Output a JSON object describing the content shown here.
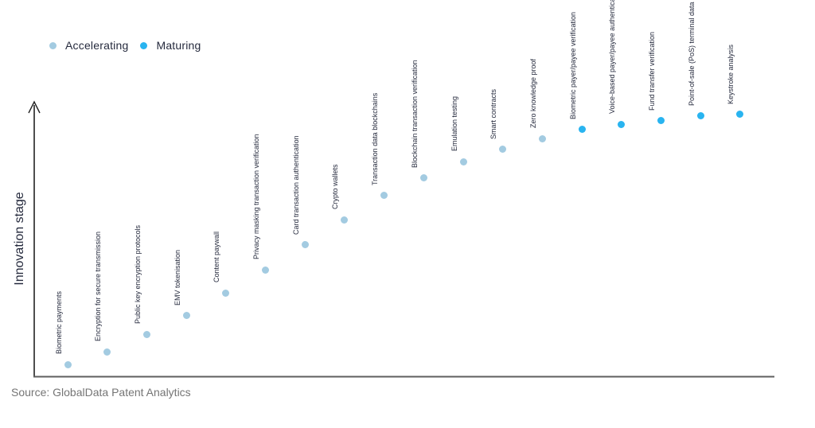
{
  "legend": {
    "items": [
      {
        "label": "Accelerating",
        "color": "#a3cbe1"
      },
      {
        "label": "Maturing",
        "color": "#29b4f0"
      }
    ]
  },
  "source": "Source: GlobalData Patent Analytics",
  "chart_data": {
    "type": "scatter",
    "title": "",
    "xlabel": "",
    "ylabel": "Innovation stage",
    "grid": false,
    "legend_position": "top-left",
    "y_range": [
      0,
      1
    ],
    "points": [
      {
        "label": "Biometric payments",
        "group": "Accelerating",
        "stage": 0.046
      },
      {
        "label": "Encryption for secure transmission",
        "group": "Accelerating",
        "stage": 0.092
      },
      {
        "label": "Public key encryption protocols",
        "group": "Accelerating",
        "stage": 0.156
      },
      {
        "label": "EMV tokenisation",
        "group": "Accelerating",
        "stage": 0.223
      },
      {
        "label": "Content paywall",
        "group": "Accelerating",
        "stage": 0.306
      },
      {
        "label": "Privacy masking transaction verification",
        "group": "Accelerating",
        "stage": 0.39
      },
      {
        "label": "Card transaction authentication",
        "group": "Accelerating",
        "stage": 0.48
      },
      {
        "label": "Crypto wallets",
        "group": "Accelerating",
        "stage": 0.572
      },
      {
        "label": "Transaction data blockchains",
        "group": "Accelerating",
        "stage": 0.659
      },
      {
        "label": "Blockchain transaction verification",
        "group": "Accelerating",
        "stage": 0.723
      },
      {
        "label": "Emulation testing",
        "group": "Accelerating",
        "stage": 0.783
      },
      {
        "label": "Smart contracts",
        "group": "Accelerating",
        "stage": 0.827
      },
      {
        "label": "Zero knowledge proof",
        "group": "Accelerating",
        "stage": 0.867
      },
      {
        "label": "Biometric payer/payee verification",
        "group": "Maturing",
        "stage": 0.899
      },
      {
        "label": "Voice-based payer/payee authentication",
        "group": "Maturing",
        "stage": 0.919
      },
      {
        "label": "Fund transfer verification",
        "group": "Maturing",
        "stage": 0.931
      },
      {
        "label": "Point-of-sale (PoS) terminal data security",
        "group": "Maturing",
        "stage": 0.948
      },
      {
        "label": "Keystroke analysis",
        "group": "Maturing",
        "stage": 0.954
      }
    ]
  }
}
